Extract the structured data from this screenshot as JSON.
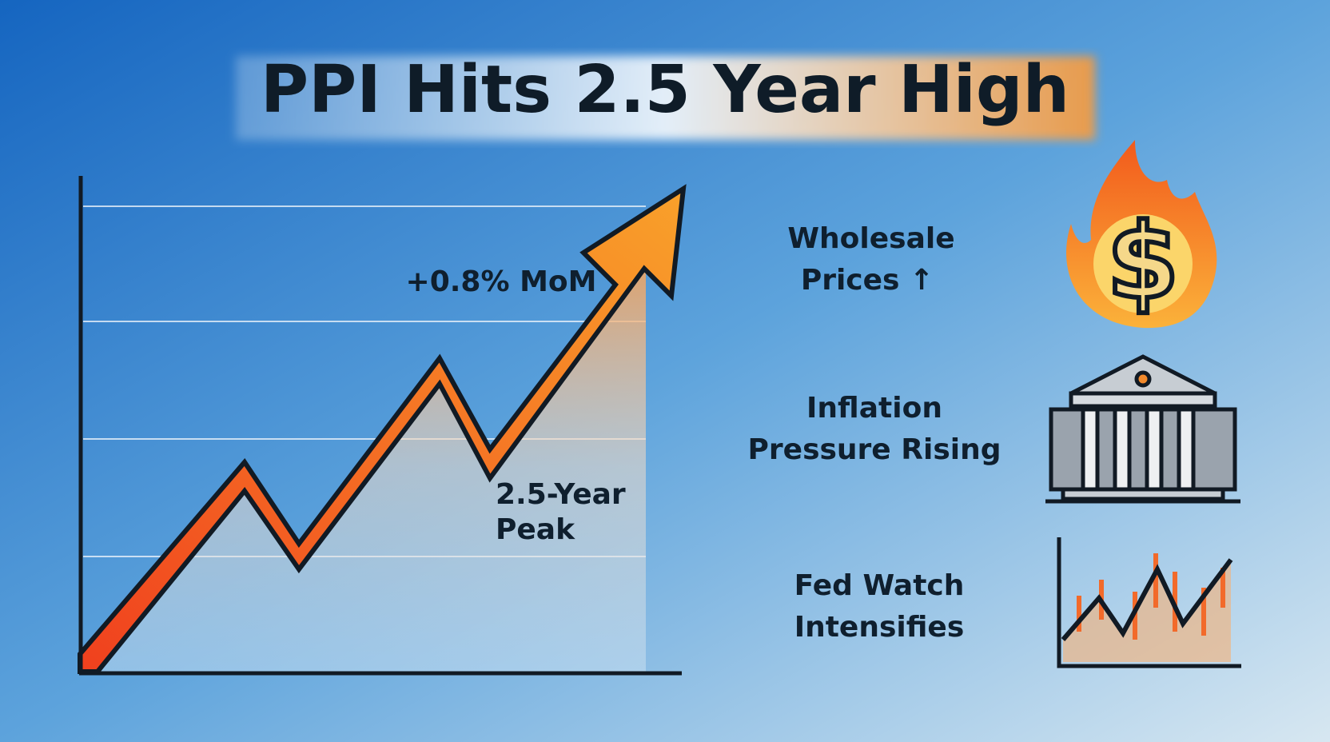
{
  "header": {
    "title": "PPI Hits 2.5 Year High"
  },
  "chart": {
    "annotations": {
      "change": "+0.8% MoM",
      "peak": [
        "2.5-Year",
        "Peak"
      ]
    }
  },
  "items": [
    {
      "lines": [
        "Wholesale",
        "Prices ↑"
      ]
    },
    {
      "lines": [
        "Inflation",
        "Pressure Rising"
      ]
    },
    {
      "lines": [
        "Fed Watch",
        "Intensifies"
      ]
    }
  ]
}
